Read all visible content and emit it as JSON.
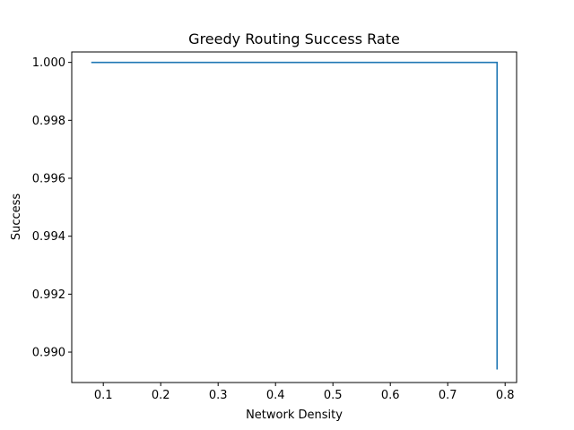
{
  "chart_data": {
    "type": "line",
    "title": "Greedy Routing Success Rate",
    "xlabel": "Network Density",
    "ylabel": "Success",
    "xlim": [
      0.045,
      0.82
    ],
    "ylim": [
      0.98895,
      1.00036
    ],
    "xticks": [
      {
        "value": 0.1,
        "label": "0.1"
      },
      {
        "value": 0.2,
        "label": "0.2"
      },
      {
        "value": 0.3,
        "label": "0.3"
      },
      {
        "value": 0.4,
        "label": "0.4"
      },
      {
        "value": 0.5,
        "label": "0.5"
      },
      {
        "value": 0.6,
        "label": "0.6"
      },
      {
        "value": 0.7,
        "label": "0.7"
      },
      {
        "value": 0.8,
        "label": "0.8"
      }
    ],
    "yticks": [
      {
        "value": 0.99,
        "label": "0.990"
      },
      {
        "value": 0.992,
        "label": "0.992"
      },
      {
        "value": 0.994,
        "label": "0.994"
      },
      {
        "value": 0.996,
        "label": "0.996"
      },
      {
        "value": 0.998,
        "label": "0.998"
      },
      {
        "value": 1.0,
        "label": "1.000"
      }
    ],
    "grid": false,
    "series": [
      {
        "color": "#1f77b4",
        "x": [
          0.079,
          0.786,
          0.786
        ],
        "y": [
          1.0,
          1.0,
          0.9894
        ]
      }
    ]
  }
}
